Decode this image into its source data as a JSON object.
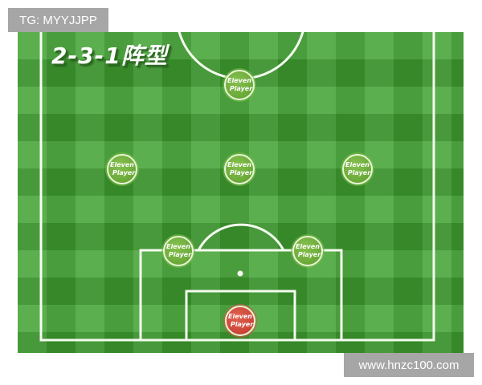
{
  "title": "2-3-1阵型",
  "watermark_top": "TG: MYYJJPP",
  "watermark_bottom": "www.hnzc100.com",
  "colors": {
    "pitch": "#41a231",
    "player": "#6aab3a",
    "goalkeeper": "#c94a3a",
    "lines": "#ffffff"
  },
  "players": [
    {
      "role": "forward",
      "line1": "Eleven",
      "line2": "Player"
    },
    {
      "role": "midfielder-left",
      "line1": "Eleven",
      "line2": "Player"
    },
    {
      "role": "midfielder-center",
      "line1": "Eleven",
      "line2": "Player"
    },
    {
      "role": "midfielder-right",
      "line1": "Eleven",
      "line2": "Player"
    },
    {
      "role": "defender-left",
      "line1": "Eleven",
      "line2": "Player"
    },
    {
      "role": "defender-right",
      "line1": "Eleven",
      "line2": "Player"
    },
    {
      "role": "goalkeeper",
      "line1": "Eleven",
      "line2": "Player"
    }
  ]
}
